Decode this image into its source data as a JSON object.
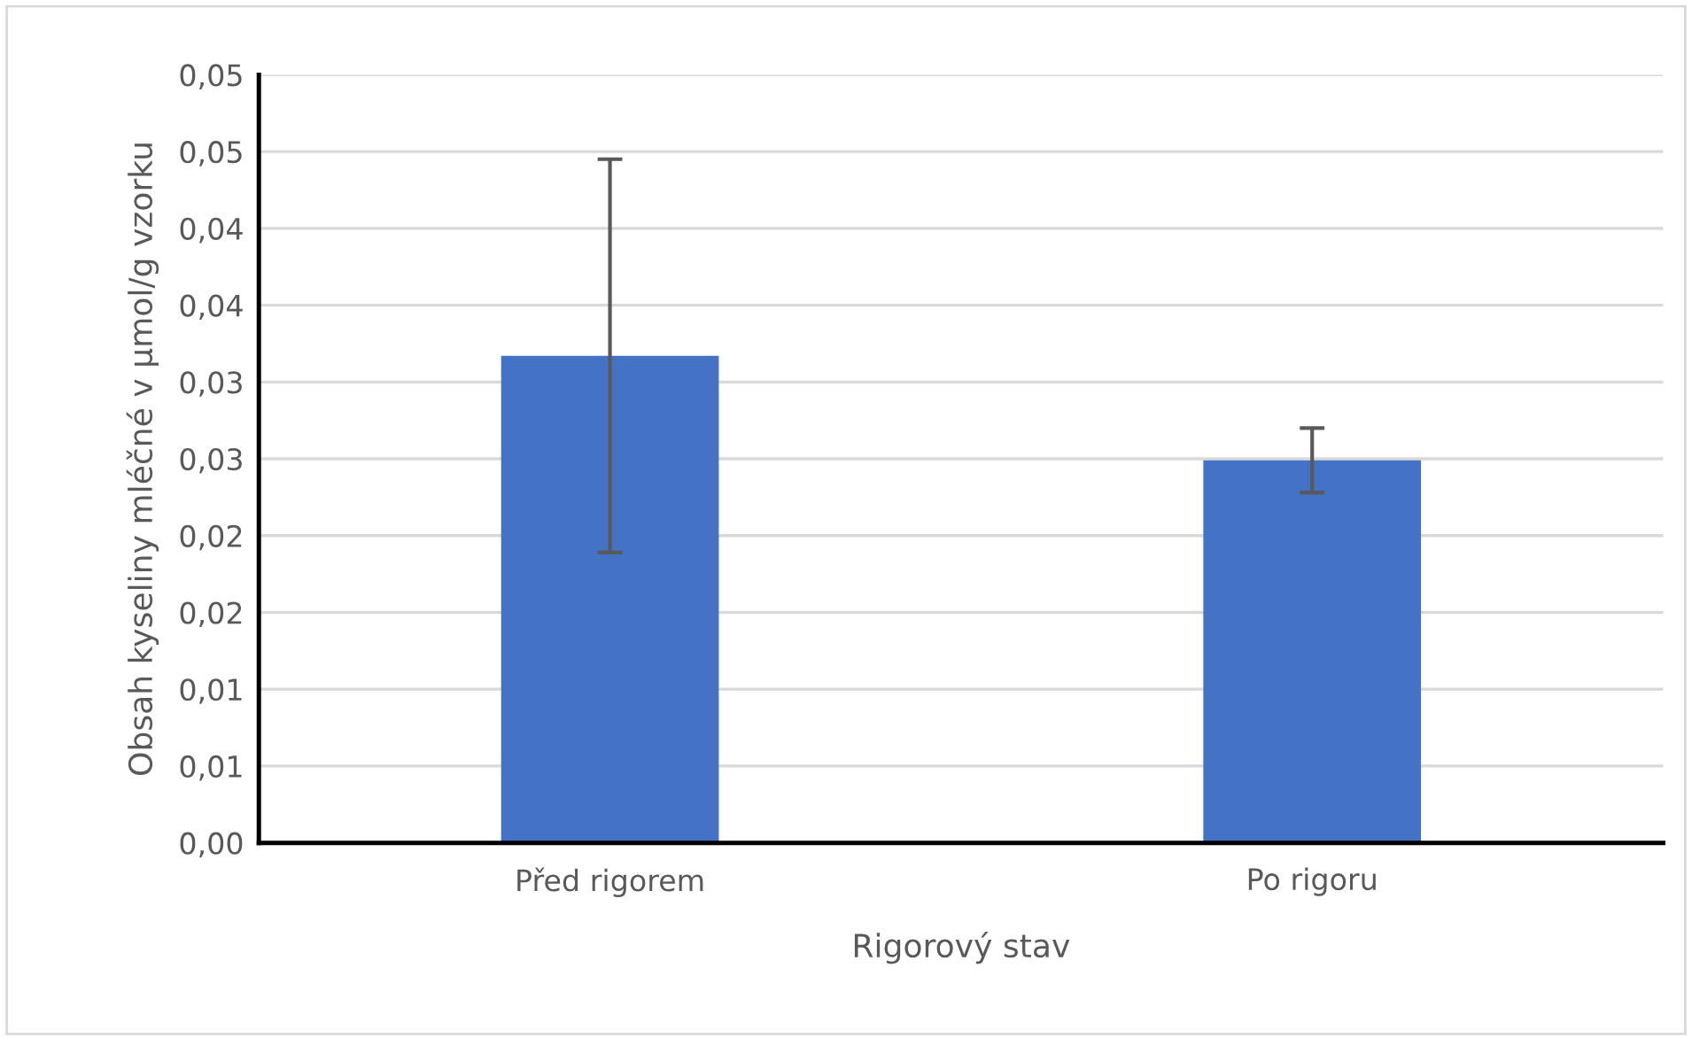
{
  "chart_data": {
    "type": "bar",
    "xlabel": "Rigorový stav",
    "ylabel": "Obsah kyseliny mléčné v µmol/g vzorku",
    "categories": [
      "Před rigorem",
      "Po rigoru"
    ],
    "values": [
      0.0317,
      0.0249
    ],
    "errors": [
      0.0128,
      0.0021
    ],
    "color": "#4472c4",
    "ylim": [
      0,
      0.05
    ],
    "yticks": [
      {
        "value": 0,
        "label": "0,00"
      },
      {
        "value": 0.005,
        "label": "0,01"
      },
      {
        "value": 0.01,
        "label": "0,01"
      },
      {
        "value": 0.015,
        "label": "0,02"
      },
      {
        "value": 0.02,
        "label": "0,02"
      },
      {
        "value": 0.025,
        "label": "0,03"
      },
      {
        "value": 0.03,
        "label": "0,03"
      },
      {
        "value": 0.035,
        "label": "0,04"
      },
      {
        "value": 0.04,
        "label": "0,04"
      },
      {
        "value": 0.045,
        "label": "0,05"
      },
      {
        "value": 0.05,
        "label": "0,05"
      }
    ],
    "grid": "y"
  }
}
